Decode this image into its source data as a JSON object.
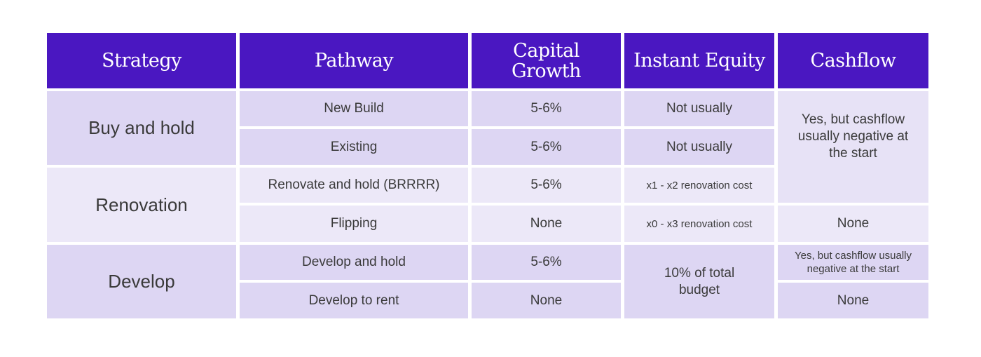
{
  "headers": [
    "Strategy",
    "Pathway",
    "Capital Growth",
    "Instant Equity",
    "Cashflow"
  ],
  "strategies": [
    "Buy and hold",
    "Renovation",
    "Develop"
  ],
  "rows": [
    {
      "pathway": "New Build",
      "capital_growth": "5-6%",
      "instant_equity": "Not usually"
    },
    {
      "pathway": "Existing",
      "capital_growth": "5-6%",
      "instant_equity": "Not usually"
    },
    {
      "pathway": "Renovate and hold (BRRRR)",
      "capital_growth": "5-6%",
      "instant_equity": "x1 - x2 renovation cost"
    },
    {
      "pathway": "Flipping",
      "capital_growth": "None",
      "instant_equity": "x0 - x3 renovation cost"
    },
    {
      "pathway": "Develop and hold",
      "capital_growth": "5-6%"
    },
    {
      "pathway": "Develop to rent",
      "capital_growth": "None"
    }
  ],
  "develop_instant_equity": "10% of total budget",
  "cashflow": {
    "buy_and_renovate_hold": "Yes, but cashflow usually negative at the start",
    "flipping": "None",
    "develop_and_hold": "Yes, but cashflow usually negative at the start",
    "develop_to_rent": "None"
  },
  "colors": {
    "header": "#4a17c1",
    "row_dark": "#ddd6f3",
    "row_light": "#ece8f8"
  }
}
